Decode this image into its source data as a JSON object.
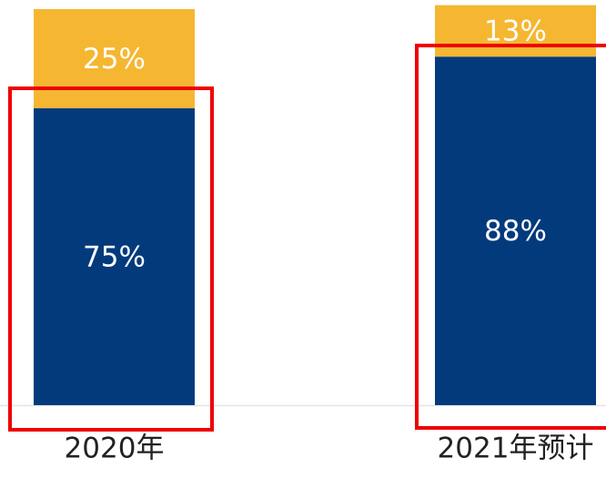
{
  "chart_data": {
    "type": "stacked_bar",
    "categories": [
      "2020年",
      "2021年预计"
    ],
    "series": [
      {
        "color": "#023a7c",
        "values": [
          75,
          88
        ],
        "value_labels": [
          "75%",
          "88%"
        ]
      },
      {
        "color": "#f5b731",
        "values": [
          25,
          13
        ],
        "value_labels": [
          "25%",
          "13%"
        ]
      }
    ],
    "ylim": [
      0,
      100
    ]
  }
}
